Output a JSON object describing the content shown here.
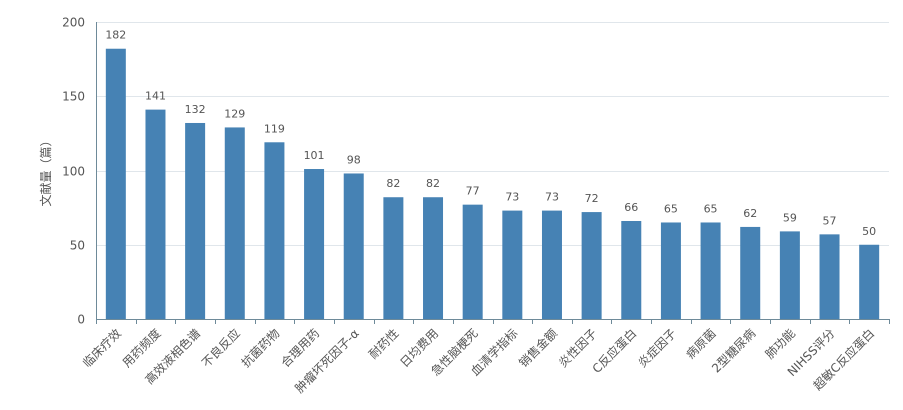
{
  "chart_data": {
    "type": "bar",
    "title": "",
    "xlabel": "",
    "ylabel": "文献量（篇）",
    "ylim": [
      0,
      200
    ],
    "yticks": [
      0,
      50,
      100,
      150,
      200
    ],
    "grid": true,
    "bar_color": "#4682b4",
    "grid_color": "#e0e6eb",
    "axis_color": "#6e8a99",
    "text_color": "#555555",
    "categories": [
      "临床疗效",
      "用药频度",
      "高效液相色谱",
      "不良反应",
      "抗菌药物",
      "合理用药",
      "肿瘤坏死因子-α",
      "耐药性",
      "日均费用",
      "急性脑梗死",
      "血清学指标",
      "销售金额",
      "炎性因子",
      "C反应蛋白",
      "炎症因子",
      "病原菌",
      "2型糖尿病",
      "肺功能",
      "NIHSS评分",
      "超敏C反应蛋白"
    ],
    "values": [
      182,
      141,
      132,
      129,
      119,
      101,
      98,
      82,
      82,
      77,
      73,
      73,
      72,
      66,
      65,
      65,
      62,
      59,
      57,
      50
    ]
  }
}
